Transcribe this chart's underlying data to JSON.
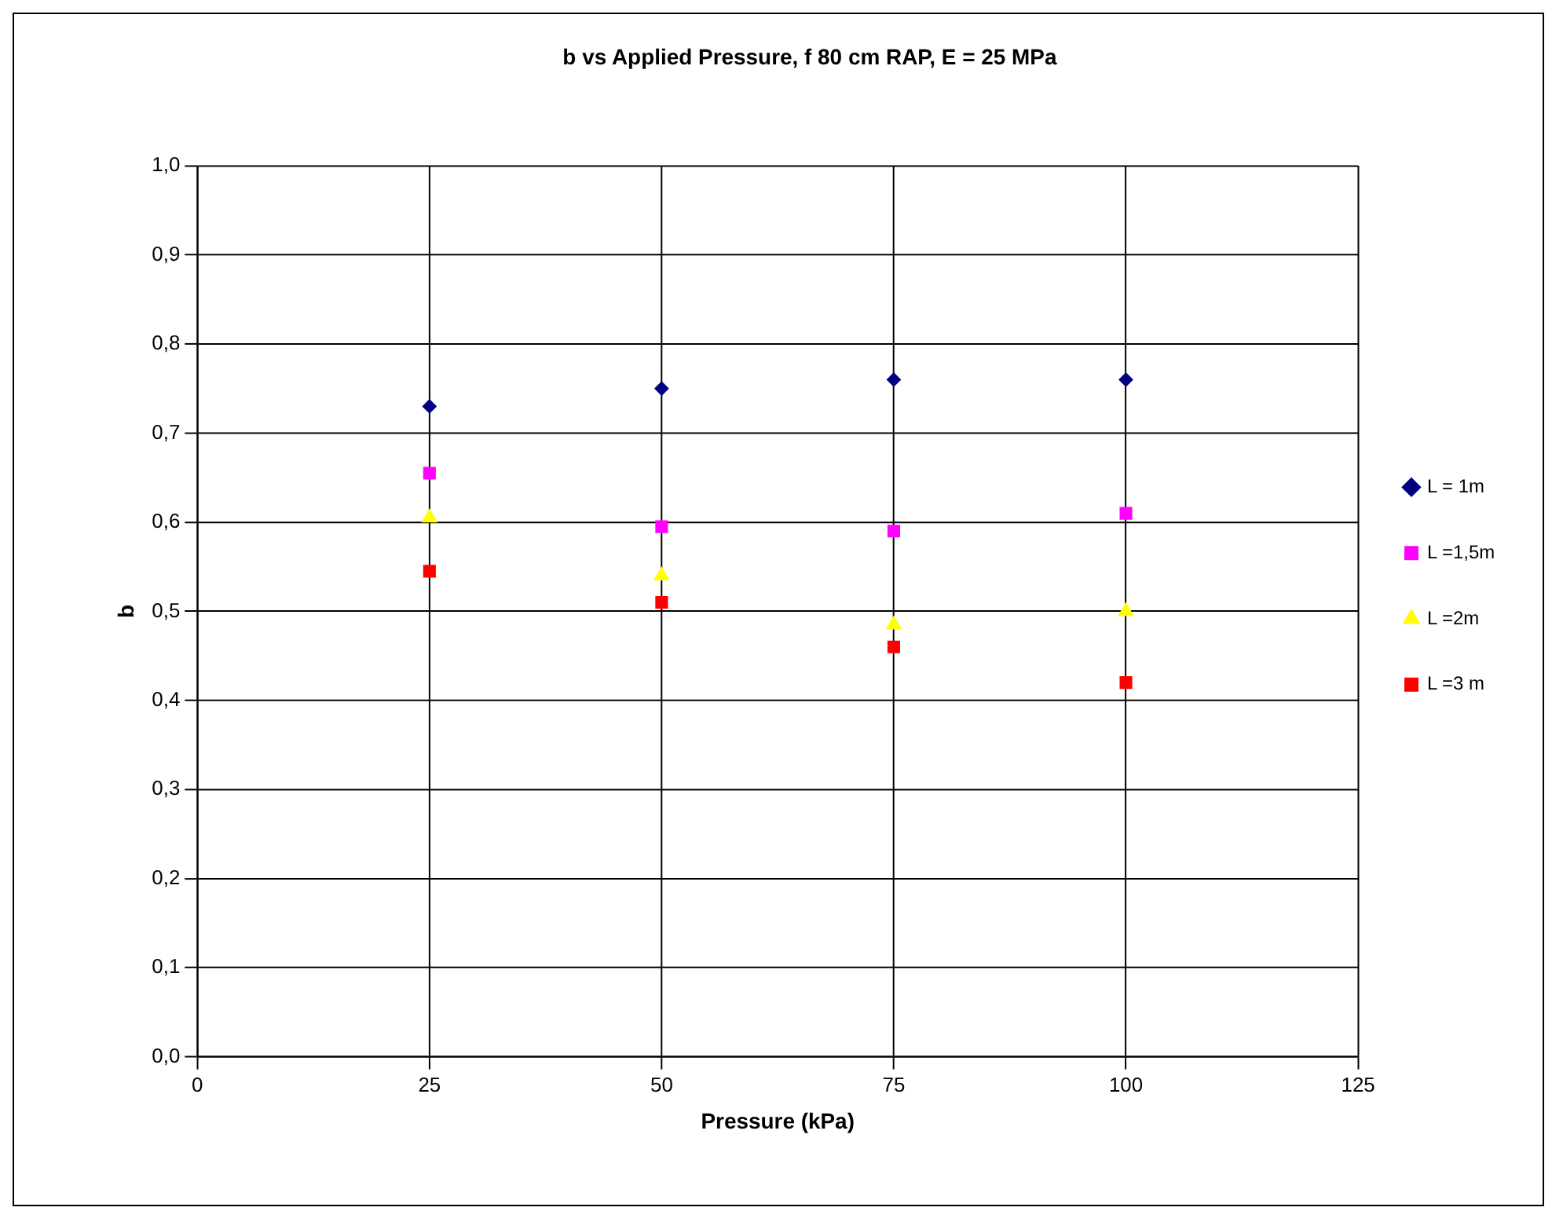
{
  "chart_data": {
    "type": "scatter",
    "title": "b vs Applied Pressure, f 80 cm RAP, E = 25 MPa",
    "xlabel": "Pressure (kPa)",
    "ylabel": "b",
    "x": [
      25,
      50,
      75,
      100
    ],
    "series": [
      {
        "name": "L = 1m",
        "color": "#000080",
        "marker": "diamond",
        "values": [
          0.73,
          0.75,
          0.76,
          0.76
        ]
      },
      {
        "name": "L =1,5m",
        "color": "#ff00ff",
        "marker": "square",
        "values": [
          0.655,
          0.595,
          0.59,
          0.61
        ]
      },
      {
        "name": "L =2m",
        "color": "#ffff00",
        "marker": "triangle",
        "values": [
          0.605,
          0.54,
          0.485,
          0.5
        ]
      },
      {
        "name": "L =3 m",
        "color": "#ff0000",
        "marker": "square",
        "values": [
          0.545,
          0.51,
          0.46,
          0.42
        ]
      }
    ],
    "xlim": [
      0,
      125
    ],
    "xticks": [
      0,
      25,
      50,
      75,
      100,
      125
    ],
    "ylim": [
      0,
      1
    ],
    "yticks": [
      {
        "value": 0,
        "label": "0,0"
      },
      {
        "value": 0.1,
        "label": "0,1"
      },
      {
        "value": 0.2,
        "label": "0,2"
      },
      {
        "value": 0.3,
        "label": "0,3"
      },
      {
        "value": 0.4,
        "label": "0,4"
      },
      {
        "value": 0.5,
        "label": "0,5"
      },
      {
        "value": 0.6,
        "label": "0,6"
      },
      {
        "value": 0.7,
        "label": "0,7"
      },
      {
        "value": 0.8,
        "label": "0,8"
      },
      {
        "value": 0.9,
        "label": "0,9"
      },
      {
        "value": 1,
        "label": "1,0"
      }
    ],
    "grid": true,
    "legend": "right"
  }
}
